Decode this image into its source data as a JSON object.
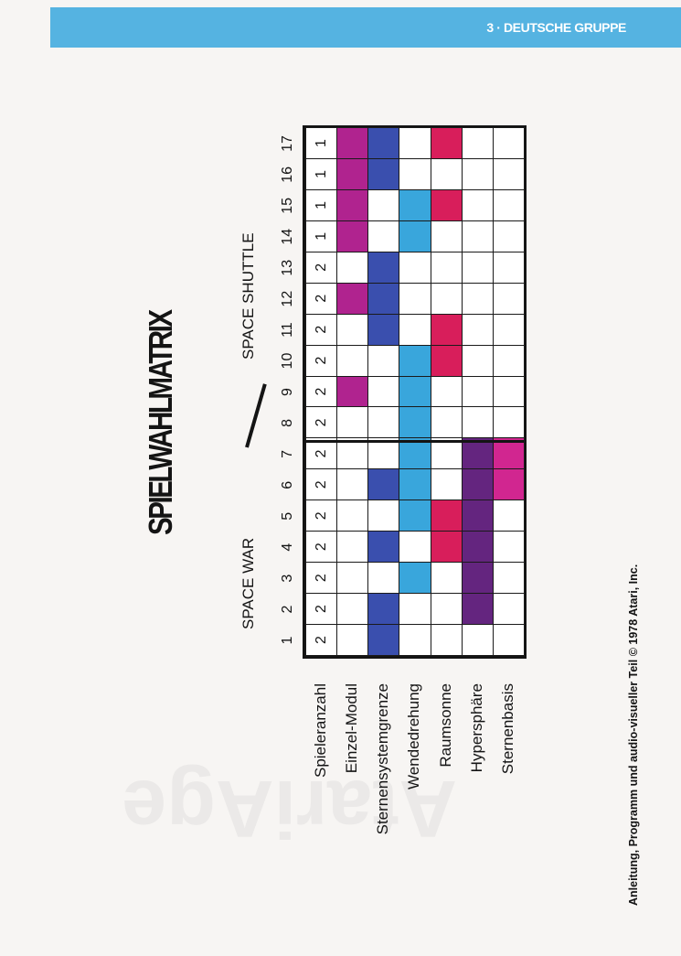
{
  "header": {
    "section_label": "3 · DEUTSCHE GRUPPE"
  },
  "title": "SPIELWAHLMATRIX",
  "game_labels": {
    "space_war": "SPACE WAR",
    "space_shuttle": "SPACE SHUTTLE"
  },
  "columns": [
    "1",
    "2",
    "3",
    "4",
    "5",
    "6",
    "7",
    "8",
    "9",
    "10",
    "11",
    "12",
    "13",
    "14",
    "15",
    "16",
    "17"
  ],
  "rows": [
    {
      "label": "Spieleranzahl",
      "color": "",
      "cells": [
        "2",
        "2",
        "2",
        "2",
        "2",
        "2",
        "2",
        "2",
        "2",
        "2",
        "2",
        "2",
        "2",
        "1",
        "1",
        "1",
        "1"
      ],
      "active": []
    },
    {
      "label": "Einzel-Modul",
      "color": "#b0238f",
      "cells": [],
      "active": [
        9,
        12,
        14,
        15,
        16,
        17
      ]
    },
    {
      "label": "Sternensystemgrenze",
      "color": "#3a4fae",
      "cells": [],
      "active": [
        1,
        2,
        4,
        6,
        11,
        12,
        13,
        16,
        17
      ]
    },
    {
      "label": "Wendedrehung",
      "color": "#39a6dc",
      "cells": [],
      "active": [
        3,
        5,
        6,
        7,
        8,
        9,
        10,
        14,
        15
      ]
    },
    {
      "label": "Raumsonne",
      "color": "#d81e5b",
      "cells": [],
      "active": [
        4,
        5,
        10,
        11,
        15,
        17
      ]
    },
    {
      "label": "Hypersphäre",
      "color": "#64257f",
      "cells": [],
      "active": [
        2,
        3,
        4,
        5,
        6,
        7
      ]
    },
    {
      "label": "Sternenbasis",
      "color": "#d12690",
      "cells": [],
      "active": [
        6,
        7
      ]
    }
  ],
  "footer": "Anleitung, Programm und audio-visueller Teil © 1978 Atari, Inc.",
  "watermark": "AtariAge"
}
